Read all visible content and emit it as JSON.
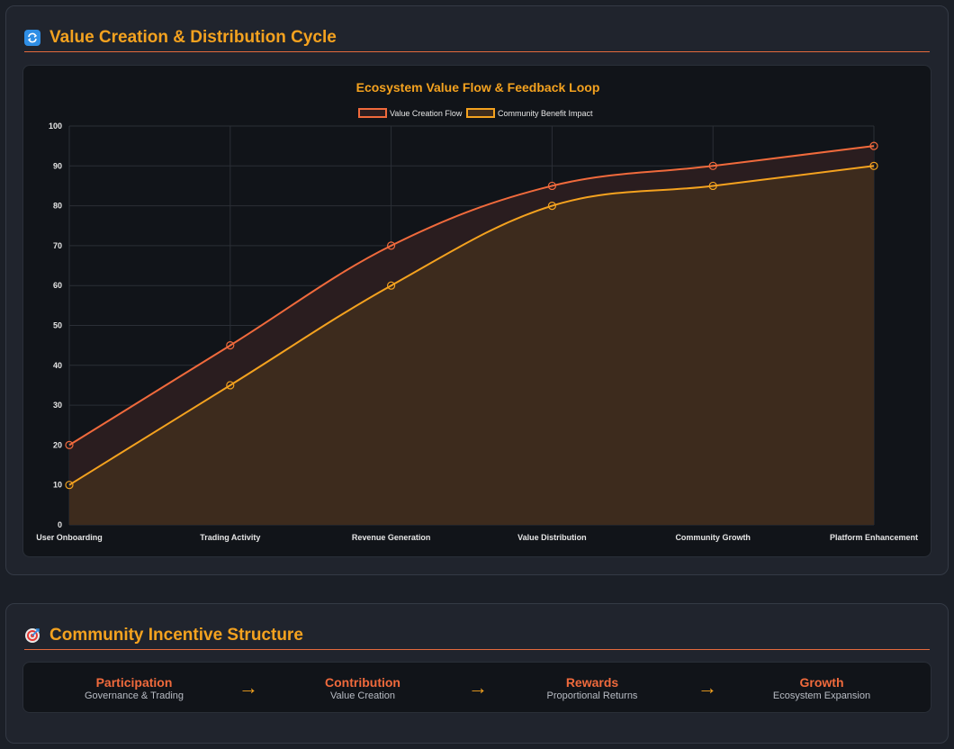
{
  "sections": {
    "cycle": {
      "icon": "cycle-arrows-icon",
      "title": "Value Creation & Distribution Cycle"
    },
    "incentive": {
      "icon": "target-icon",
      "title": "Community Incentive Structure",
      "steps": [
        {
          "title": "Participation",
          "subtitle": "Governance & Trading"
        },
        {
          "title": "Contribution",
          "subtitle": "Value Creation"
        },
        {
          "title": "Rewards",
          "subtitle": "Proportional Returns"
        },
        {
          "title": "Growth",
          "subtitle": "Ecosystem Expansion"
        }
      ],
      "arrow": "→"
    }
  },
  "chart_data": {
    "type": "area",
    "title": "Ecosystem Value Flow & Feedback Loop",
    "categories": [
      "User Onboarding",
      "Trading Activity",
      "Revenue Generation",
      "Value Distribution",
      "Community Growth",
      "Platform Enhancement"
    ],
    "series": [
      {
        "name": "Value Creation Flow",
        "values": [
          20,
          45,
          70,
          85,
          90,
          95
        ],
        "color": "#f06a3c",
        "fill": "#2a1d1f"
      },
      {
        "name": "Community Benefit Impact",
        "values": [
          10,
          35,
          60,
          80,
          85,
          90
        ],
        "color": "#f4a21f",
        "fill": "#3d2b1d"
      }
    ],
    "ylim": [
      0,
      100
    ],
    "yticks": [
      0,
      10,
      20,
      30,
      40,
      50,
      60,
      70,
      80,
      90,
      100
    ],
    "grid": true,
    "legend": "top-center",
    "xlabel": "",
    "ylabel": ""
  }
}
